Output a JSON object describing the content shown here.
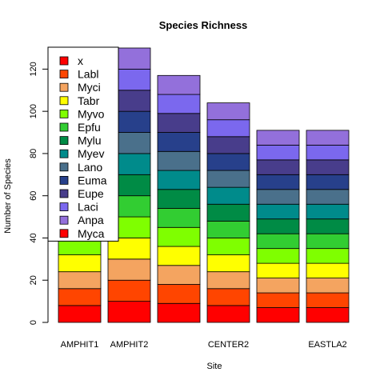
{
  "chart_data": {
    "type": "bar",
    "stacked": true,
    "title": "Species Richness",
    "xlabel": "Site",
    "ylabel": "Number of Species",
    "ylim": [
      0,
      130
    ],
    "yticks": [
      0,
      20,
      40,
      60,
      80,
      100,
      120
    ],
    "categories": [
      "AMPHIT1",
      "AMPHIT2",
      "",
      "CENTER2",
      "",
      "EASTLA2"
    ],
    "legend_position": "top-left",
    "series": [
      {
        "name": "Myca",
        "color": "#ff0000",
        "values": [
          8,
          10,
          9,
          8,
          7,
          7
        ]
      },
      {
        "name": "Anpa",
        "color": "#ff4500",
        "values": [
          8,
          10,
          9,
          8,
          7,
          7
        ]
      },
      {
        "name": "Laci",
        "color": "#f4a460",
        "values": [
          8,
          10,
          9,
          8,
          7,
          7
        ]
      },
      {
        "name": "Eupe",
        "color": "#ffff00",
        "values": [
          8,
          10,
          9,
          8,
          7,
          7
        ]
      },
      {
        "name": "Euma",
        "color": "#7fff00",
        "values": [
          8,
          10,
          9,
          8,
          7,
          7
        ]
      },
      {
        "name": "Lano",
        "color": "#32cd32",
        "values": [
          8,
          10,
          9,
          8,
          7,
          7
        ]
      },
      {
        "name": "Myev",
        "color": "#008b45",
        "values": [
          8,
          10,
          9,
          8,
          7,
          7
        ]
      },
      {
        "name": "Mylu",
        "color": "#008b8b",
        "values": [
          8,
          10,
          9,
          8,
          7,
          7
        ]
      },
      {
        "name": "Epfu",
        "color": "#4a708b",
        "values": [
          8,
          10,
          9,
          8,
          7,
          7
        ]
      },
      {
        "name": "Myvo",
        "color": "#27408b",
        "values": [
          8,
          10,
          9,
          8,
          7,
          7
        ]
      },
      {
        "name": "Tabr",
        "color": "#483d8b",
        "values": [
          8,
          10,
          9,
          8,
          7,
          7
        ]
      },
      {
        "name": "Myci",
        "color": "#7b68ee",
        "values": [
          8,
          10,
          9,
          8,
          7,
          7
        ]
      },
      {
        "name": "Labl",
        "color": "#9370db",
        "values": [
          8,
          10,
          9,
          8,
          7,
          7
        ]
      }
    ],
    "legend_entries": [
      {
        "name": "x",
        "color": "#ff0000"
      },
      {
        "name": "Labl",
        "color": "#ff4500"
      },
      {
        "name": "Myci",
        "color": "#f4a460"
      },
      {
        "name": "Tabr",
        "color": "#ffff00"
      },
      {
        "name": "Myvo",
        "color": "#7fff00"
      },
      {
        "name": "Epfu",
        "color": "#32cd32"
      },
      {
        "name": "Mylu",
        "color": "#008b45"
      },
      {
        "name": "Myev",
        "color": "#008b8b"
      },
      {
        "name": "Lano",
        "color": "#4a708b"
      },
      {
        "name": "Euma",
        "color": "#27408b"
      },
      {
        "name": "Eupe",
        "color": "#483d8b"
      },
      {
        "name": "Laci",
        "color": "#7b68ee"
      },
      {
        "name": "Anpa",
        "color": "#9370db"
      },
      {
        "name": "Myca",
        "color": "#ff0000"
      }
    ]
  }
}
